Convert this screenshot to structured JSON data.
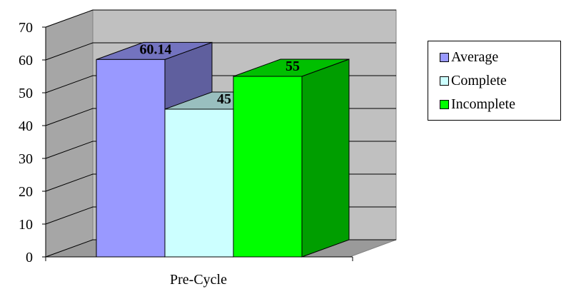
{
  "chart_data": {
    "type": "bar",
    "categories": [
      "Pre-Cycle"
    ],
    "series": [
      {
        "name": "Average",
        "values": [
          60.14
        ],
        "label": "60.14",
        "color": "#9999ff"
      },
      {
        "name": "Complete",
        "values": [
          45
        ],
        "label": "45",
        "color": "#ccffff"
      },
      {
        "name": "Incomplete",
        "values": [
          55
        ],
        "label": "55",
        "color": "#00ff00"
      }
    ],
    "ylim": [
      0,
      70
    ],
    "yticks": [
      "0",
      "10",
      "20",
      "30",
      "40",
      "50",
      "60",
      "70"
    ],
    "grid": true,
    "legend_position": "right",
    "wall_color": "#c0c0c0"
  }
}
